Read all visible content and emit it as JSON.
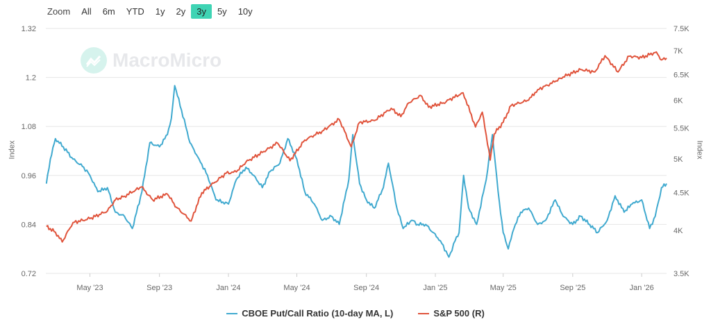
{
  "range_selector": {
    "label": "Zoom",
    "buttons": [
      "All",
      "6m",
      "YTD",
      "1y",
      "2y",
      "3y",
      "5y",
      "10y"
    ],
    "active": "3y"
  },
  "watermark": "MacroMicro",
  "colors": {
    "pcr": "#3fa9cf",
    "spx": "#e0533b",
    "active": "#3fd4b4"
  },
  "chart_data": {
    "type": "line",
    "x_range": [
      "2023-02-12",
      "2026-02-14"
    ],
    "x_ticks": [
      {
        "date": "2023-05-01",
        "label": "May '23"
      },
      {
        "date": "2023-09-01",
        "label": "Sep '23"
      },
      {
        "date": "2024-01-01",
        "label": "Jan '24"
      },
      {
        "date": "2024-05-01",
        "label": "May '24"
      },
      {
        "date": "2024-09-01",
        "label": "Sep '24"
      },
      {
        "date": "2025-01-01",
        "label": "Jan '25"
      },
      {
        "date": "2025-05-01",
        "label": "May '25"
      },
      {
        "date": "2025-09-01",
        "label": "Sep '25"
      },
      {
        "date": "2026-01-01",
        "label": "Jan '26"
      }
    ],
    "y_left": {
      "label": "Index",
      "range": [
        0.72,
        1.32
      ],
      "ticks": [
        "0.72",
        "0.84",
        "0.96",
        "1.08",
        "1.2",
        "1.32"
      ]
    },
    "y_right": {
      "label": "Index",
      "scale": "log",
      "range": [
        3500,
        7500
      ],
      "ticks": [
        {
          "v": 3500,
          "label": "3.5K"
        },
        {
          "v": 4000,
          "label": "4K"
        },
        {
          "v": 4500,
          "label": "4.5K"
        },
        {
          "v": 5000,
          "label": "5K"
        },
        {
          "v": 5500,
          "label": "5.5K"
        },
        {
          "v": 6000,
          "label": "6K"
        },
        {
          "v": 6500,
          "label": "6.5K"
        },
        {
          "v": 7000,
          "label": "7K"
        },
        {
          "v": 7500,
          "label": "7.5K"
        }
      ]
    },
    "series": [
      {
        "name": "CBOE Put/Call Ratio (10-day MA, L)",
        "axis": "left",
        "points": [
          [
            "2023-02-13",
            0.94
          ],
          [
            "2023-02-20",
            1.0
          ],
          [
            "2023-03-01",
            1.05
          ],
          [
            "2023-03-15",
            1.03
          ],
          [
            "2023-04-01",
            1.0
          ],
          [
            "2023-04-20",
            0.98
          ],
          [
            "2023-05-01",
            0.96
          ],
          [
            "2023-05-15",
            0.92
          ],
          [
            "2023-06-01",
            0.93
          ],
          [
            "2023-06-15",
            0.87
          ],
          [
            "2023-07-01",
            0.86
          ],
          [
            "2023-07-15",
            0.83
          ],
          [
            "2023-08-01",
            0.92
          ],
          [
            "2023-08-15",
            1.04
          ],
          [
            "2023-09-01",
            1.03
          ],
          [
            "2023-09-15",
            1.06
          ],
          [
            "2023-09-22",
            1.1
          ],
          [
            "2023-09-28",
            1.18
          ],
          [
            "2023-10-10",
            1.12
          ],
          [
            "2023-10-25",
            1.04
          ],
          [
            "2023-11-10",
            1.0
          ],
          [
            "2023-11-25",
            0.96
          ],
          [
            "2023-12-10",
            0.9
          ],
          [
            "2024-01-01",
            0.89
          ],
          [
            "2024-01-15",
            0.95
          ],
          [
            "2024-02-01",
            0.98
          ],
          [
            "2024-02-15",
            0.96
          ],
          [
            "2024-03-01",
            0.93
          ],
          [
            "2024-03-15",
            0.97
          ],
          [
            "2024-04-01",
            0.99
          ],
          [
            "2024-04-15",
            1.05
          ],
          [
            "2024-05-01",
            1.0
          ],
          [
            "2024-05-15",
            0.92
          ],
          [
            "2024-06-01",
            0.89
          ],
          [
            "2024-06-15",
            0.85
          ],
          [
            "2024-07-01",
            0.86
          ],
          [
            "2024-07-15",
            0.84
          ],
          [
            "2024-08-01",
            0.95
          ],
          [
            "2024-08-08",
            1.06
          ],
          [
            "2024-08-20",
            0.94
          ],
          [
            "2024-09-01",
            0.9
          ],
          [
            "2024-09-15",
            0.88
          ],
          [
            "2024-10-01",
            0.93
          ],
          [
            "2024-10-10",
            0.99
          ],
          [
            "2024-10-25",
            0.88
          ],
          [
            "2024-11-05",
            0.83
          ],
          [
            "2024-11-20",
            0.85
          ],
          [
            "2024-12-01",
            0.84
          ],
          [
            "2024-12-15",
            0.84
          ],
          [
            "2025-01-10",
            0.8
          ],
          [
            "2025-01-25",
            0.76
          ],
          [
            "2025-02-05",
            0.8
          ],
          [
            "2025-02-12",
            0.82
          ],
          [
            "2025-02-20",
            0.96
          ],
          [
            "2025-03-01",
            0.88
          ],
          [
            "2025-03-15",
            0.84
          ],
          [
            "2025-04-01",
            0.95
          ],
          [
            "2025-04-12",
            1.06
          ],
          [
            "2025-04-22",
            0.92
          ],
          [
            "2025-05-01",
            0.82
          ],
          [
            "2025-05-10",
            0.78
          ],
          [
            "2025-05-20",
            0.83
          ],
          [
            "2025-06-01",
            0.87
          ],
          [
            "2025-06-15",
            0.88
          ],
          [
            "2025-07-01",
            0.84
          ],
          [
            "2025-07-15",
            0.85
          ],
          [
            "2025-08-01",
            0.9
          ],
          [
            "2025-08-15",
            0.86
          ],
          [
            "2025-09-01",
            0.84
          ],
          [
            "2025-09-15",
            0.86
          ],
          [
            "2025-10-01",
            0.84
          ],
          [
            "2025-10-15",
            0.82
          ],
          [
            "2025-11-01",
            0.85
          ],
          [
            "2025-11-15",
            0.91
          ],
          [
            "2025-12-01",
            0.87
          ],
          [
            "2025-12-15",
            0.89
          ],
          [
            "2026-01-01",
            0.9
          ],
          [
            "2026-01-15",
            0.83
          ],
          [
            "2026-01-25",
            0.86
          ],
          [
            "2026-02-05",
            0.93
          ],
          [
            "2026-02-14",
            0.94
          ]
        ]
      },
      {
        "name": "S&P 500 (R)",
        "axis": "right",
        "points": [
          [
            "2023-02-13",
            4050
          ],
          [
            "2023-03-01",
            3980
          ],
          [
            "2023-03-13",
            3860
          ],
          [
            "2023-04-01",
            4100
          ],
          [
            "2023-05-01",
            4150
          ],
          [
            "2023-06-01",
            4250
          ],
          [
            "2023-06-15",
            4400
          ],
          [
            "2023-07-01",
            4450
          ],
          [
            "2023-07-31",
            4580
          ],
          [
            "2023-08-20",
            4400
          ],
          [
            "2023-09-15",
            4480
          ],
          [
            "2023-10-01",
            4300
          ],
          [
            "2023-10-27",
            4120
          ],
          [
            "2023-11-15",
            4500
          ],
          [
            "2023-12-01",
            4600
          ],
          [
            "2023-12-28",
            4780
          ],
          [
            "2024-01-15",
            4800
          ],
          [
            "2024-02-01",
            4950
          ],
          [
            "2024-03-01",
            5100
          ],
          [
            "2024-03-28",
            5250
          ],
          [
            "2024-04-19",
            4970
          ],
          [
            "2024-05-15",
            5300
          ],
          [
            "2024-06-15",
            5450
          ],
          [
            "2024-07-15",
            5650
          ],
          [
            "2024-08-05",
            5190
          ],
          [
            "2024-08-20",
            5600
          ],
          [
            "2024-09-15",
            5630
          ],
          [
            "2024-10-15",
            5850
          ],
          [
            "2024-11-01",
            5700
          ],
          [
            "2024-11-15",
            5950
          ],
          [
            "2024-12-06",
            6090
          ],
          [
            "2024-12-20",
            5870
          ],
          [
            "2025-01-15",
            5950
          ],
          [
            "2025-02-19",
            6140
          ],
          [
            "2025-03-13",
            5520
          ],
          [
            "2025-03-25",
            5780
          ],
          [
            "2025-04-08",
            4980
          ],
          [
            "2025-04-15",
            5400
          ],
          [
            "2025-05-01",
            5600
          ],
          [
            "2025-05-15",
            5900
          ],
          [
            "2025-06-15",
            6000
          ],
          [
            "2025-07-01",
            6200
          ],
          [
            "2025-07-31",
            6350
          ],
          [
            "2025-08-15",
            6450
          ],
          [
            "2025-09-15",
            6600
          ],
          [
            "2025-10-10",
            6550
          ],
          [
            "2025-10-28",
            6890
          ],
          [
            "2025-11-20",
            6550
          ],
          [
            "2025-12-10",
            6880
          ],
          [
            "2026-01-01",
            6850
          ],
          [
            "2026-01-27",
            6970
          ],
          [
            "2026-02-05",
            6800
          ],
          [
            "2026-02-14",
            6840
          ]
        ]
      }
    ],
    "legend": "bottom-center",
    "grid": true
  }
}
